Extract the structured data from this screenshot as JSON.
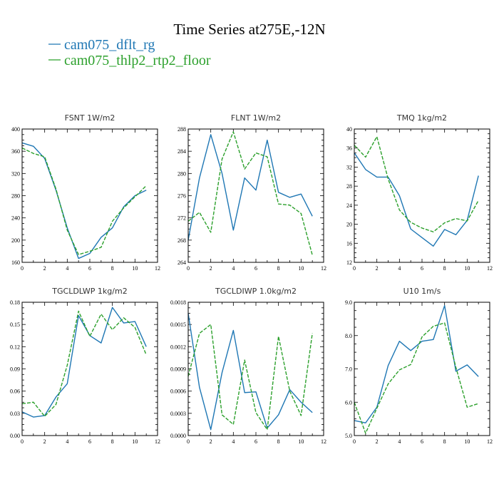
{
  "figure": {
    "title": "Time Series at275E,-12N",
    "legend": [
      {
        "label": "cam075_dflt_rg",
        "color": "#1f77b4",
        "dash": "solid"
      },
      {
        "label": "cam075_thlp2_rtp2_floor",
        "color": "#2ca02c",
        "dash": "dashed"
      }
    ]
  },
  "chart_data": [
    {
      "type": "line",
      "title": "FSNT   1W/m2",
      "x": [
        0,
        1,
        2,
        3,
        4,
        5,
        6,
        7,
        8,
        9,
        10,
        11
      ],
      "xlim": [
        0,
        12
      ],
      "xticks": [
        0,
        2,
        4,
        6,
        8,
        10,
        12
      ],
      "ylim": [
        160,
        400
      ],
      "yticks": [
        "160",
        "200",
        "240",
        "280",
        "320",
        "360",
        "400"
      ],
      "series": [
        {
          "values": [
            375,
            369,
            347,
            290,
            222,
            167,
            176,
            205,
            222,
            260,
            280,
            290
          ]
        },
        {
          "values": [
            366,
            356,
            350,
            292,
            218,
            174,
            180,
            187,
            234,
            258,
            278,
            298
          ]
        }
      ]
    },
    {
      "type": "line",
      "title": "FLNT   1W/m2",
      "x": [
        0,
        1,
        2,
        3,
        4,
        5,
        6,
        7,
        8,
        9,
        10,
        11
      ],
      "xlim": [
        0,
        12
      ],
      "xticks": [
        0,
        2,
        4,
        6,
        8,
        10,
        12
      ],
      "ylim": [
        264,
        288
      ],
      "yticks": [
        "264",
        "268",
        "272",
        "276",
        "280",
        "284",
        "288"
      ],
      "series": [
        {
          "values": [
            268.0,
            279.2,
            287.0,
            280.0,
            269.8,
            279.2,
            277.0,
            286.0,
            276.6,
            275.7,
            276.3,
            272.3
          ]
        },
        {
          "values": [
            271.4,
            273.0,
            269.4,
            282.6,
            287.5,
            280.8,
            283.7,
            283.0,
            274.5,
            274.3,
            272.8,
            265.3
          ]
        }
      ]
    },
    {
      "type": "line",
      "title": "TMQ   1kg/m2",
      "x": [
        0,
        1,
        2,
        3,
        4,
        5,
        6,
        7,
        8,
        9,
        10,
        11
      ],
      "xlim": [
        0,
        12
      ],
      "xticks": [
        0,
        2,
        4,
        6,
        8,
        10,
        12
      ],
      "ylim": [
        12,
        40
      ],
      "yticks": [
        "12",
        "16",
        "20",
        "24",
        "28",
        "32",
        "36",
        "40"
      ],
      "series": [
        {
          "values": [
            35.0,
            31.5,
            29.9,
            29.9,
            26.0,
            19.0,
            17.2,
            15.4,
            18.9,
            17.8,
            20.8,
            30.2
          ]
        },
        {
          "values": [
            36.6,
            34.1,
            38.4,
            29.5,
            23.0,
            20.4,
            19.2,
            18.4,
            20.3,
            21.2,
            20.7,
            25.0
          ]
        }
      ]
    },
    {
      "type": "line",
      "title": "TGCLDLWP   1kg/m2",
      "x": [
        0,
        1,
        2,
        3,
        4,
        5,
        6,
        7,
        8,
        9,
        10,
        11
      ],
      "xlim": [
        0,
        12
      ],
      "xticks": [
        0,
        2,
        4,
        6,
        8,
        10,
        12
      ],
      "ylim": [
        0.0,
        0.18
      ],
      "yticks": [
        "0.00",
        "0.03",
        "0.06",
        "0.09",
        "0.12",
        "0.15",
        "0.18"
      ],
      "series": [
        {
          "values": [
            0.032,
            0.025,
            0.027,
            0.052,
            0.07,
            0.162,
            0.135,
            0.125,
            0.173,
            0.152,
            0.154,
            0.12
          ]
        },
        {
          "values": [
            0.043,
            0.045,
            0.026,
            0.042,
            0.095,
            0.168,
            0.134,
            0.164,
            0.143,
            0.159,
            0.146,
            0.109
          ]
        }
      ]
    },
    {
      "type": "line",
      "title": "TGCLDIWP   1.0kg/m2",
      "x": [
        0,
        1,
        2,
        3,
        4,
        5,
        6,
        7,
        8,
        9,
        10,
        11
      ],
      "xlim": [
        0,
        12
      ],
      "xticks": [
        0,
        2,
        4,
        6,
        8,
        10,
        12
      ],
      "ylim": [
        0.0,
        0.0018
      ],
      "yticks": [
        "0.0000",
        "0.0003",
        "0.0006",
        "0.0009",
        "0.0012",
        "0.0015",
        "0.0018"
      ],
      "series": [
        {
          "values": [
            0.00165,
            0.00065,
            8e-05,
            0.00085,
            0.00142,
            0.00058,
            0.00059,
            0.0001,
            0.00028,
            0.00062,
            0.00045,
            0.00031
          ]
        },
        {
          "values": [
            0.0008,
            0.00138,
            0.0015,
            0.00028,
            0.00015,
            0.00102,
            0.00031,
            8e-05,
            0.00134,
            0.0006,
            0.00027,
            0.00138
          ]
        }
      ]
    },
    {
      "type": "line",
      "title": "U10   1m/s",
      "x": [
        0,
        1,
        2,
        3,
        4,
        5,
        6,
        7,
        8,
        9,
        10,
        11
      ],
      "xlim": [
        0,
        12
      ],
      "xticks": [
        0,
        2,
        4,
        6,
        8,
        10,
        12
      ],
      "ylim": [
        5.0,
        9.0
      ],
      "yticks": [
        "5.0",
        "6.0",
        "7.0",
        "8.0",
        "9.0"
      ],
      "series": [
        {
          "values": [
            5.45,
            5.38,
            5.85,
            7.1,
            7.83,
            7.55,
            7.83,
            7.88,
            8.9,
            6.93,
            7.12,
            6.77
          ]
        },
        {
          "values": [
            6.0,
            5.07,
            5.82,
            6.55,
            6.97,
            7.13,
            7.96,
            8.28,
            8.38,
            7.05,
            5.85,
            5.96
          ]
        }
      ]
    }
  ]
}
